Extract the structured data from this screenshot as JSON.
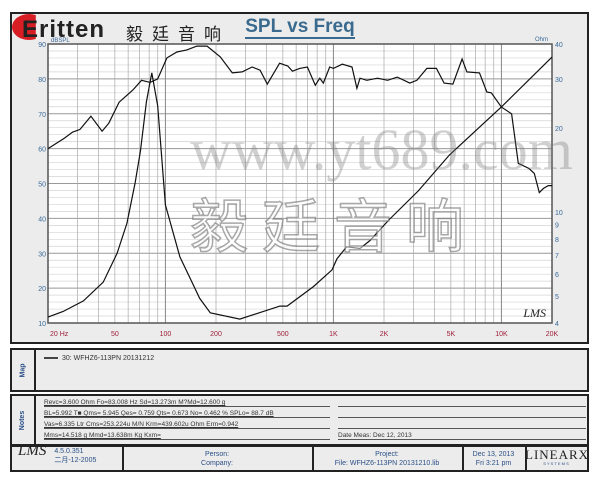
{
  "logo": {
    "brand": "Eritten",
    "chinese": "毅廷音响",
    "accent": "#d81e25"
  },
  "chart": {
    "title": "SPL vs Freq",
    "left_unit": "dBSPL",
    "right_unit": "Ohm",
    "lms_mark": "LMS"
  },
  "chart_data": {
    "type": "line",
    "title": "SPL vs Freq",
    "x_scale": "log",
    "xlim": [
      20,
      20000
    ],
    "x_ticks": [
      "20 Hz",
      "50",
      "100",
      "200",
      "500",
      "1K",
      "2K",
      "5K",
      "10K",
      "20K"
    ],
    "x_tick_values": [
      20,
      50,
      100,
      200,
      500,
      1000,
      2000,
      5000,
      10000,
      20000
    ],
    "ylim_left": [
      10,
      90
    ],
    "y_ticks_left": [
      90,
      80,
      70,
      60,
      50,
      40,
      30,
      20,
      10
    ],
    "ylabel_left": "dBSPL",
    "ylim_right": [
      4,
      40
    ],
    "y_scale_right": "log",
    "y_ticks_right": [
      40,
      30,
      20,
      10,
      9,
      8,
      7,
      6,
      5,
      4
    ],
    "ylabel_right": "Ohm",
    "grid": true,
    "series": [
      {
        "axis": "left",
        "color": "#111111",
        "points": [
          [
            20,
            60
          ],
          [
            25,
            63
          ],
          [
            28,
            64.7
          ],
          [
            31,
            65.5
          ],
          [
            36,
            69.3
          ],
          [
            42,
            65
          ],
          [
            46,
            67.3
          ],
          [
            53,
            73.3
          ],
          [
            64,
            76.8
          ],
          [
            72,
            79.6
          ],
          [
            81,
            79
          ],
          [
            90,
            80
          ],
          [
            102,
            86
          ],
          [
            117,
            87.7
          ],
          [
            134,
            88.3
          ],
          [
            154,
            89.4
          ],
          [
            177,
            89.4
          ],
          [
            212,
            86.3
          ],
          [
            250,
            81.7
          ],
          [
            286,
            82
          ],
          [
            328,
            83.4
          ],
          [
            366,
            82.5
          ],
          [
            404,
            78.5
          ],
          [
            478,
            84.5
          ],
          [
            535,
            83.7
          ],
          [
            570,
            82.2
          ],
          [
            630,
            83
          ],
          [
            700,
            83.4
          ],
          [
            780,
            78.2
          ],
          [
            830,
            80.2
          ],
          [
            870,
            78.8
          ],
          [
            950,
            83.4
          ],
          [
            1000,
            83
          ],
          [
            1130,
            84.2
          ],
          [
            1290,
            83.4
          ],
          [
            1380,
            77.3
          ],
          [
            1440,
            80.2
          ],
          [
            1580,
            79.6
          ],
          [
            1830,
            80.2
          ],
          [
            2100,
            79.6
          ],
          [
            2400,
            80.5
          ],
          [
            2850,
            78.8
          ],
          [
            3140,
            79.6
          ],
          [
            3600,
            83
          ],
          [
            4100,
            83
          ],
          [
            4560,
            78.8
          ],
          [
            5140,
            78.5
          ],
          [
            5830,
            85.7
          ],
          [
            6230,
            82
          ],
          [
            7400,
            81.7
          ],
          [
            8200,
            76.2
          ],
          [
            8700,
            76
          ],
          [
            10000,
            71.9
          ],
          [
            11500,
            70
          ],
          [
            12600,
            55.8
          ],
          [
            14600,
            54.3
          ],
          [
            15700,
            52.9
          ],
          [
            16800,
            47.4
          ],
          [
            17800,
            48.6
          ],
          [
            19000,
            49.4
          ],
          [
            20000,
            49.4
          ]
        ]
      },
      {
        "axis": "right",
        "color": "#111111",
        "points": [
          [
            20,
            4.2
          ],
          [
            24.6,
            4.4
          ],
          [
            32.5,
            4.8
          ],
          [
            42.6,
            5.6
          ],
          [
            51.5,
            7.1
          ],
          [
            59,
            9.1
          ],
          [
            66,
            12.7
          ],
          [
            71,
            16.5
          ],
          [
            77,
            24.8
          ],
          [
            83,
            31.5
          ],
          [
            90,
            24
          ],
          [
            100,
            10.6
          ],
          [
            122,
            6.9
          ],
          [
            140,
            5.8
          ],
          [
            160,
            4.9
          ],
          [
            185,
            4.35
          ],
          [
            277,
            4.13
          ],
          [
            480,
            4.6
          ],
          [
            530,
            4.6
          ],
          [
            760,
            5.4
          ],
          [
            980,
            6.2
          ],
          [
            1050,
            6.8
          ],
          [
            1200,
            7.5
          ],
          [
            1440,
            7.4
          ],
          [
            1650,
            7.9
          ],
          [
            2150,
            9.4
          ],
          [
            3200,
            11.9
          ],
          [
            4900,
            16
          ],
          [
            10000,
            23.8
          ],
          [
            20000,
            35.9
          ]
        ]
      }
    ]
  },
  "map": {
    "label": "Map",
    "entry": "30: WFHZ6-113PN    20131212"
  },
  "notes": {
    "label": "Notes",
    "lines": [
      "Revc=3.600 Ohm  Fo=83.008 Hz  Sd=13.273m M?Md=12.600 g",
      "BL=5.992 T■  Qms= 5.945  Qes= 0.759  Qts= 0.673  No= 0.462 %  SPLo= 88.7 dB",
      "Vas=6.335 Ltr  Cms=253.224u M/N  Krm=439.602u Ohm  Erm=0.942",
      "Mms=14.518 g  Mmd=13.638m Kg  Kxm="
    ],
    "right_line": "Date Meas: Dec 12, 2013"
  },
  "footer": {
    "lms": "LMS",
    "version": "4.5.0.351",
    "date_code": "二月-12-2005",
    "person": "Person:",
    "company": "Company:",
    "project": "Project:",
    "file": "File: WFHZ6-113PN 20131210.lib",
    "date": "Dec 13, 2013",
    "time": "Fri  3:21 pm",
    "brand": "LINEARX",
    "brand_sub": "S Y S T E M S"
  },
  "watermark": {
    "chinese": "毅廷音响",
    "url": "www.yt689.com"
  }
}
